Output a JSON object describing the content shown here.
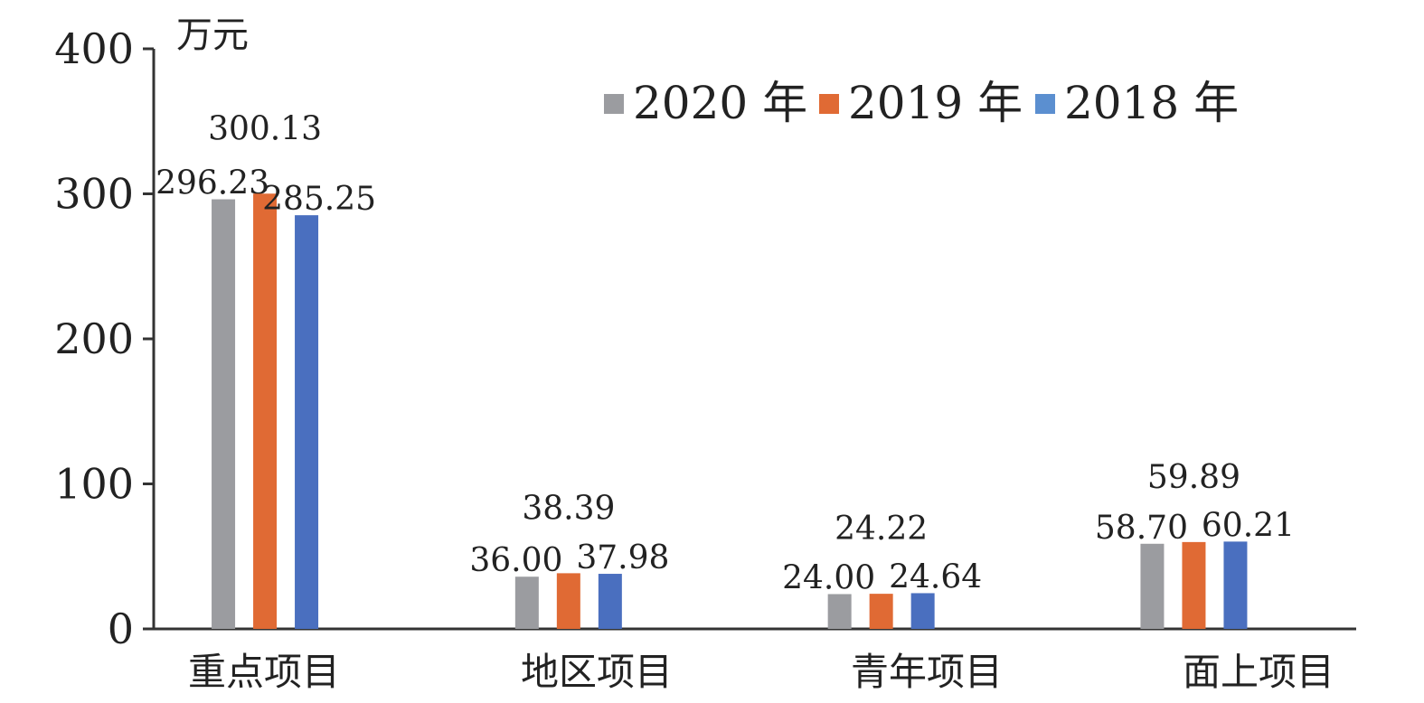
{
  "chart_data": {
    "type": "bar",
    "title": "",
    "xlabel": "",
    "ylabel": "",
    "unit": "万元",
    "ylim": [
      0,
      400
    ],
    "yticks": [
      "0",
      "100",
      "200",
      "300",
      "400"
    ],
    "categories": [
      "重点项目",
      "地区项目",
      "青年项目",
      "面上项目"
    ],
    "legend_position": "top-right",
    "grid": false,
    "series": [
      {
        "name": "2020 年",
        "color": "#9b9ca0",
        "values": [
          296.23,
          36.0,
          24.0,
          58.7
        ],
        "labels": [
          "296.23",
          "36.00",
          "24.00",
          "58.70"
        ]
      },
      {
        "name": "2019 年",
        "color": "#e06a34",
        "values": [
          300.13,
          38.39,
          24.22,
          59.89
        ],
        "labels": [
          "300.13",
          "38.39",
          "24.22",
          "59.89"
        ]
      },
      {
        "name": "2018 年",
        "color": "#4a6fbf",
        "legend_color": "#5b8fd0",
        "values": [
          285.25,
          37.98,
          24.64,
          60.21
        ],
        "labels": [
          "285.25",
          "37.98",
          "24.64",
          "60.21"
        ]
      }
    ]
  }
}
